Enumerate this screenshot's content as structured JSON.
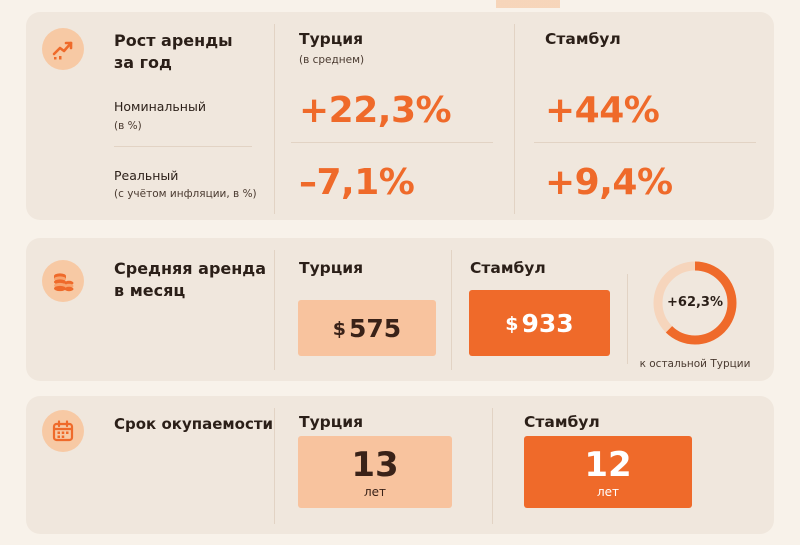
{
  "colors": {
    "accent": "#ef6a2a",
    "accent_light": "#f8c39e",
    "card_bg": "#f0e7dd",
    "page_bg": "#f8f2ea",
    "icon_bg": "#f7c9a4"
  },
  "rent_growth": {
    "icon": "trend-up-icon",
    "title_line1": "Рост аренды",
    "title_line2": "за год",
    "nominal_label": "Номинальный",
    "nominal_sub": "(в %)",
    "real_label": "Реальный",
    "real_sub": "(с учётом инфляции, в %)",
    "turkey_title": "Турция",
    "turkey_sub": "(в среднем)",
    "istanbul_title": "Стамбул",
    "turkey_nominal": "+22,3%",
    "turkey_real": "–7,1%",
    "istanbul_nominal": "+44%",
    "istanbul_real": "+9,4%"
  },
  "avg_rent": {
    "icon": "coins-icon",
    "title_line1": "Средняя аренда",
    "title_line2": "в месяц",
    "turkey_title": "Турция",
    "istanbul_title": "Стамбул",
    "currency": "$",
    "turkey_value": "575",
    "istanbul_value": "933",
    "diff_value": "+62,3%",
    "diff_fraction": 0.623,
    "diff_caption": "к остальной Турции"
  },
  "payback": {
    "icon": "calendar-icon",
    "title": "Срок окупаемости",
    "turkey_title": "Турция",
    "istanbul_title": "Стамбул",
    "turkey_value": "13",
    "istanbul_value": "12",
    "unit": "лет"
  }
}
